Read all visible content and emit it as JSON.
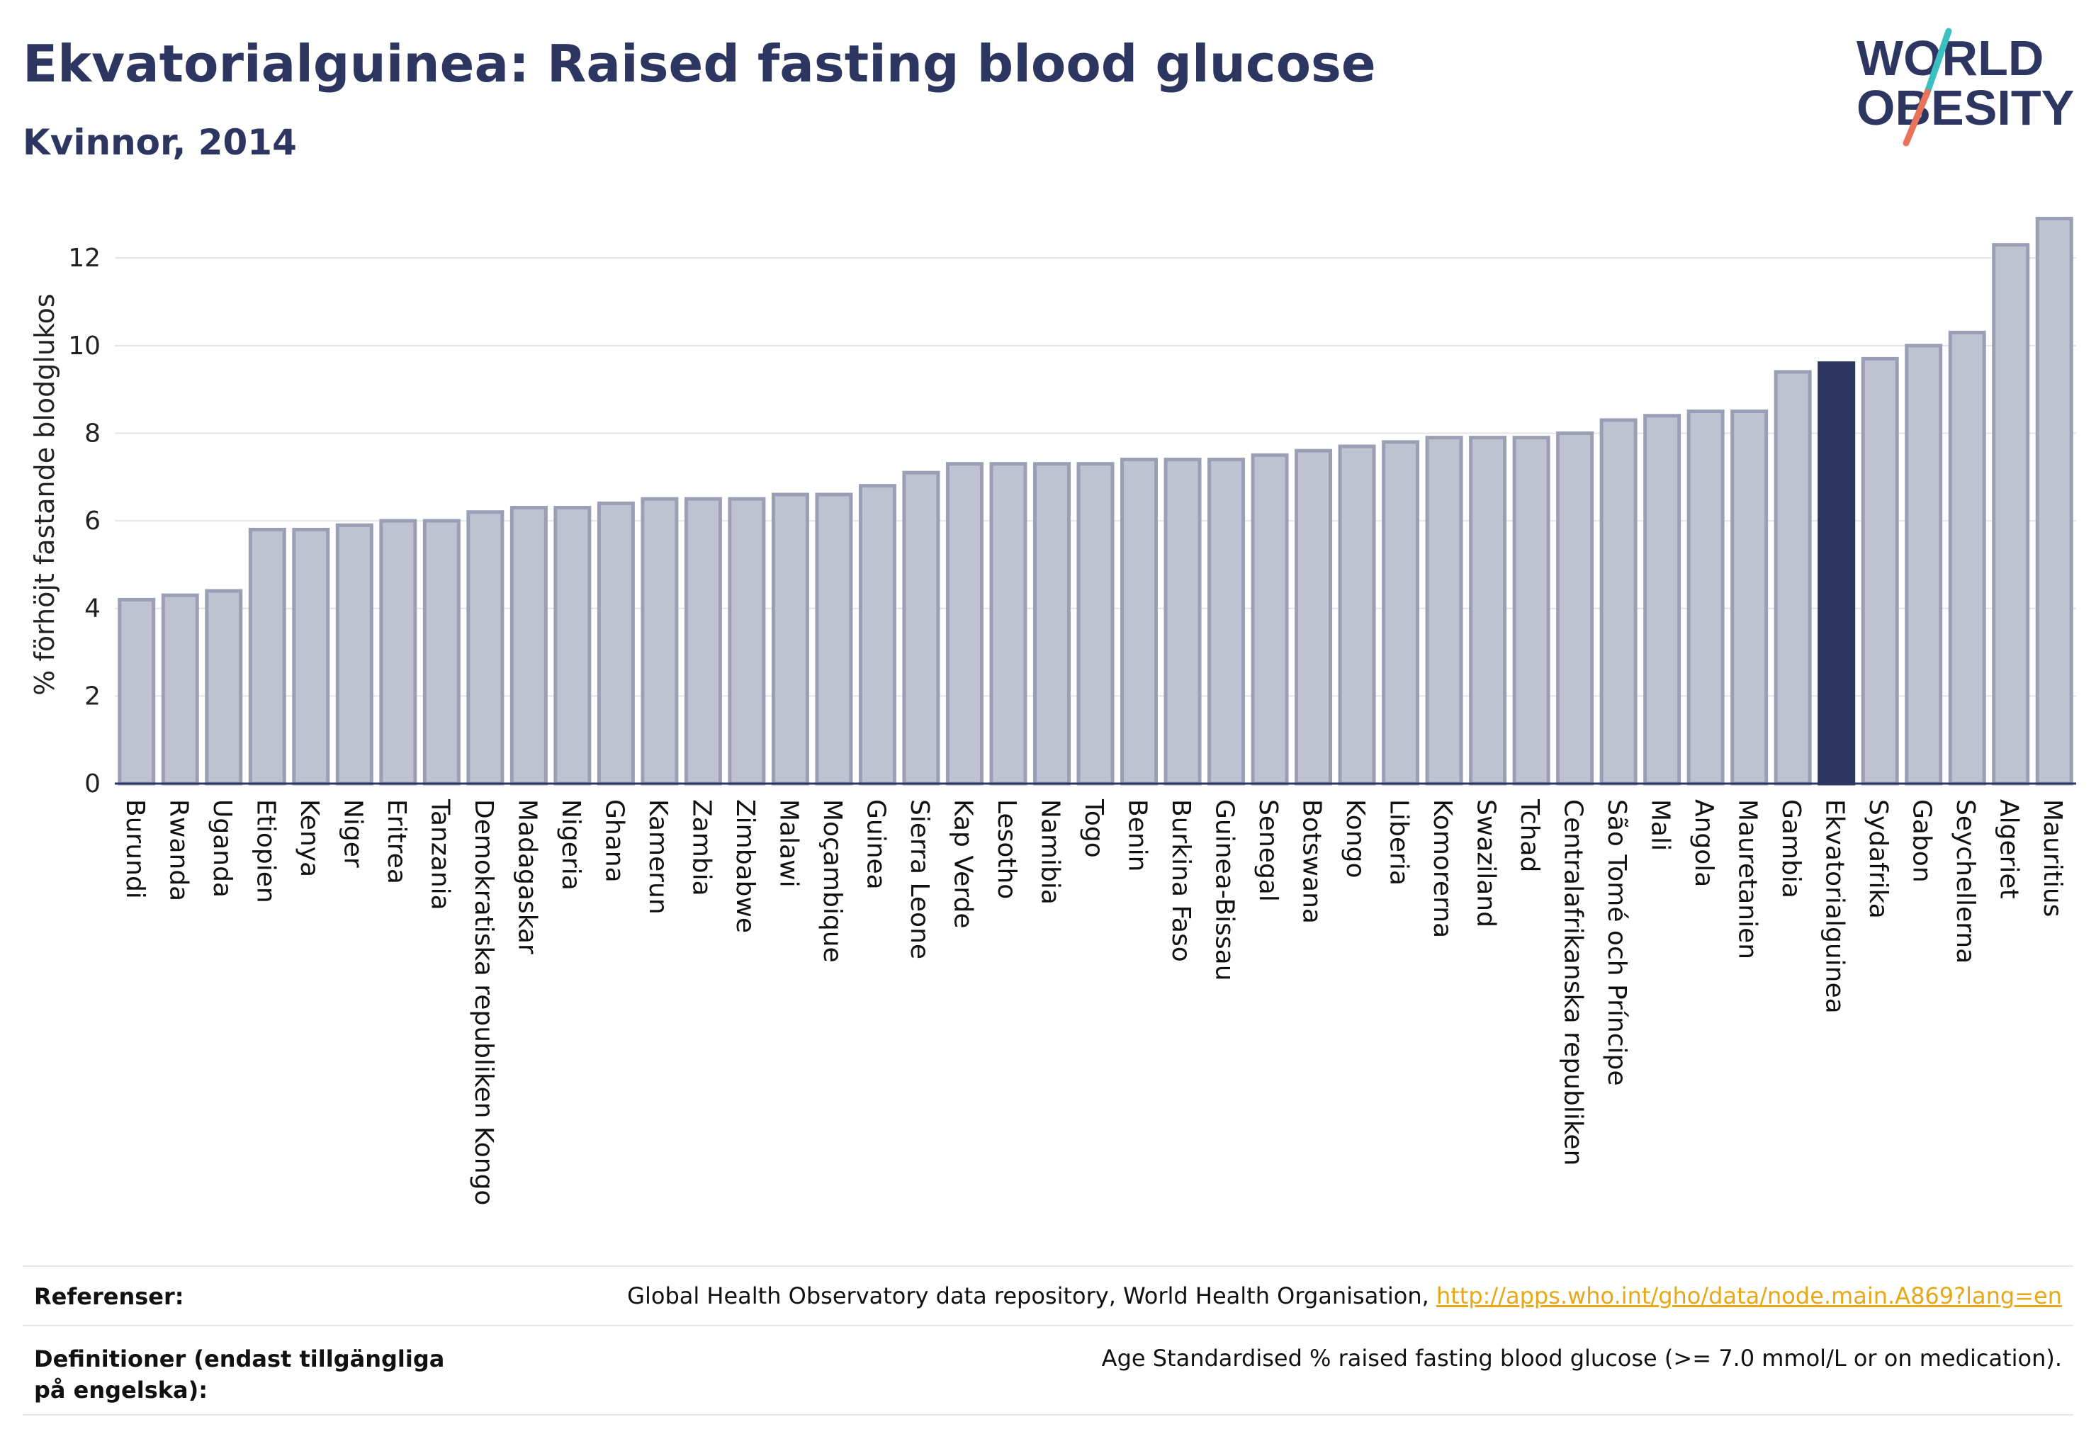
{
  "header": {
    "title": "Ekvatorialguinea: Raised fasting blood glucose",
    "subtitle": "Kvinnor, 2014"
  },
  "logo": {
    "line1": "WORLD",
    "line2": "OBESITY",
    "colors": {
      "text": "#2d3561",
      "slash_top": "#3bbfbf",
      "slash_bottom": "#e8735a"
    }
  },
  "chart_data": {
    "type": "bar",
    "ylabel": "% förhöjt fastande blodglukos",
    "ylim": [
      0,
      13.2
    ],
    "yticks": [
      0,
      2,
      4,
      6,
      8,
      10,
      12
    ],
    "grid": true,
    "highlight": "Ekvatorialguinea",
    "colors": {
      "bar": "#bfc3d1",
      "bar_edge": "#9a9fb6",
      "highlight": "#2d3561",
      "grid": "#e4e4e4",
      "axis": "#2d3561"
    },
    "categories": [
      "Burundi",
      "Rwanda",
      "Uganda",
      "Etiopien",
      "Kenya",
      "Niger",
      "Eritrea",
      "Tanzania",
      "Demokratiska republiken Kongo",
      "Madagaskar",
      "Nigeria",
      "Ghana",
      "Kamerun",
      "Zambia",
      "Zimbabwe",
      "Malawi",
      "Moçambique",
      "Guinea",
      "Sierra Leone",
      "Kap Verde",
      "Lesotho",
      "Namibia",
      "Togo",
      "Benin",
      "Burkina Faso",
      "Guinea-Bissau",
      "Senegal",
      "Botswana",
      "Kongo",
      "Liberia",
      "Komorerna",
      "Swaziland",
      "Tchad",
      "Centralafrikanska republiken",
      "São Tomé och Príncipe",
      "Mali",
      "Angola",
      "Mauretanien",
      "Gambia",
      "Ekvatorialguinea",
      "Sydafrika",
      "Gabon",
      "Seychellerna",
      "Algeriet",
      "Mauritius"
    ],
    "values": [
      4.2,
      4.3,
      4.4,
      5.8,
      5.8,
      5.9,
      6.0,
      6.0,
      6.2,
      6.3,
      6.3,
      6.4,
      6.5,
      6.5,
      6.5,
      6.6,
      6.6,
      6.8,
      7.1,
      7.3,
      7.3,
      7.3,
      7.3,
      7.4,
      7.4,
      7.4,
      7.5,
      7.6,
      7.7,
      7.8,
      7.9,
      7.9,
      7.9,
      8.0,
      8.3,
      8.4,
      8.5,
      8.5,
      9.4,
      9.6,
      9.7,
      10.0,
      10.3,
      12.3,
      12.9
    ]
  },
  "footer": {
    "references_label": "Referenser:",
    "references_text": "Global Health Observatory data repository, World Health Organisation, ",
    "references_link": "http://apps.who.int/gho/data/node.main.A869?lang=en",
    "definitions_label": "Definitioner (endast tillgängliga på engelska):",
    "definitions_text": "Age Standardised % raised fasting blood glucose (>= 7.0 mmol/L or on medication)."
  }
}
